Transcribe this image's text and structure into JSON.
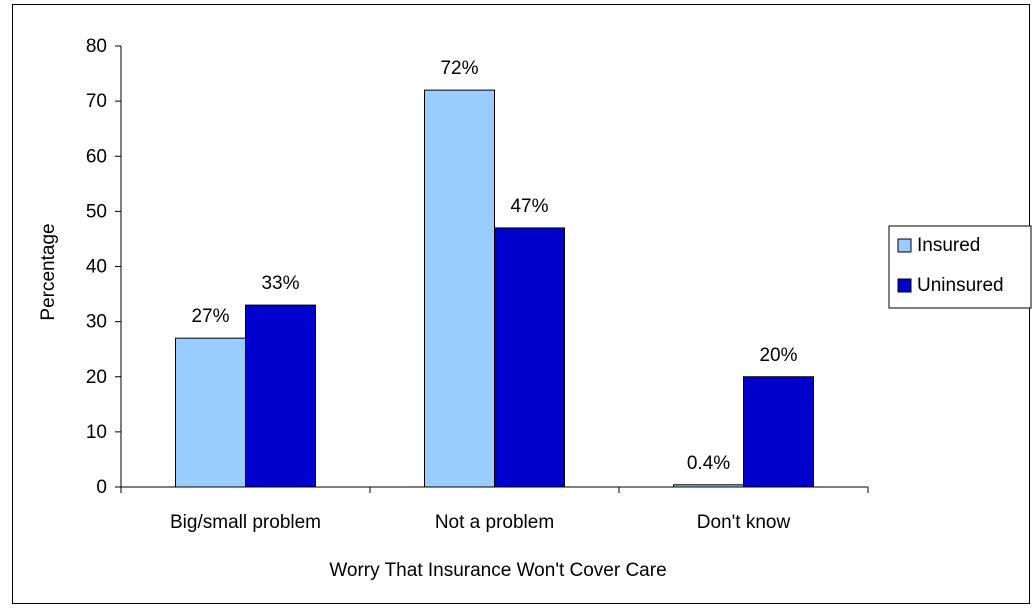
{
  "chart_data": {
    "type": "bar",
    "title": "",
    "xlabel": "Worry That Insurance Won't Cover Care",
    "ylabel": "Percentage",
    "ylim": [
      0,
      80
    ],
    "yticks": [
      "0",
      "10",
      "20",
      "30",
      "40",
      "50",
      "60",
      "70",
      "80"
    ],
    "grid": false,
    "legend_position": "right",
    "categories": [
      "Big/small problem",
      "Not a problem",
      "Don't know"
    ],
    "series": [
      {
        "name": "Insured",
        "values": [
          27,
          72,
          0.4
        ],
        "labels": [
          "27%",
          "72%",
          "0.4%"
        ],
        "color": "#99ccff"
      },
      {
        "name": "Uninsured",
        "values": [
          33,
          47,
          20
        ],
        "labels": [
          "33%",
          "47%",
          "20%"
        ],
        "color": "#0000cc"
      }
    ]
  }
}
